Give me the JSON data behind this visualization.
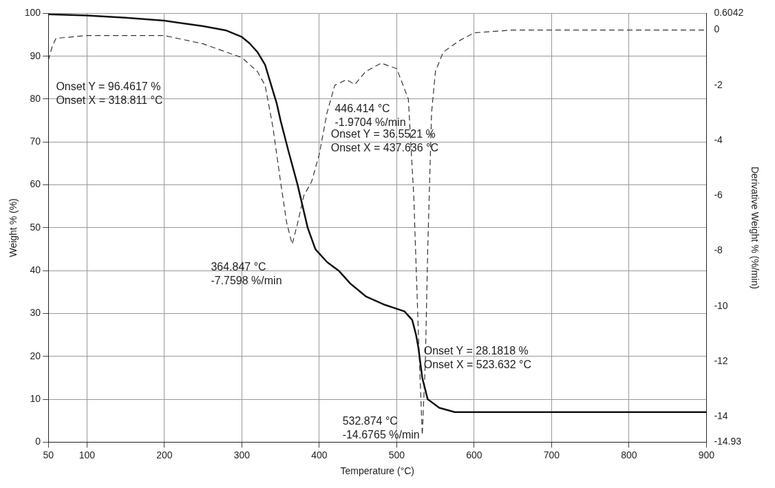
{
  "chart_data": {
    "type": "line",
    "xlabel": "Temperature (°C)",
    "ylabel": "Weight % (%)",
    "y2label": "Derivative Weight % (%/min)",
    "xlim": [
      50,
      900
    ],
    "xticks": [
      50,
      100,
      200,
      300,
      400,
      500,
      600,
      700,
      800,
      900
    ],
    "ylim": [
      0,
      100
    ],
    "yticks": [
      0,
      10,
      20,
      30,
      40,
      50,
      60,
      70,
      80,
      90,
      100
    ],
    "y2lim": [
      -14.93,
      0.6042
    ],
    "y2ticks": [
      -14.93,
      -14,
      -12,
      -10,
      -8,
      -6,
      -4,
      -2,
      0,
      0.6042
    ],
    "grid": true,
    "legend": false,
    "marker": "none",
    "series": [
      {
        "color": "#111111",
        "line_style": "solid",
        "x": [
          50,
          100,
          150,
          200,
          250,
          280,
          300,
          310,
          320,
          330,
          340,
          345,
          350,
          360,
          372,
          385,
          395,
          410,
          425,
          440,
          460,
          485,
          510,
          520,
          525,
          528,
          533,
          540,
          555,
          575,
          700,
          900
        ],
        "values": [
          99.8,
          99.5,
          99,
          98.3,
          97,
          96,
          94.5,
          93,
          91,
          88,
          82,
          79,
          75,
          68,
          60,
          50,
          45,
          42,
          40,
          37,
          34,
          32,
          30.5,
          28.5,
          25,
          22,
          15,
          10,
          8,
          7,
          7,
          7
        ]
      },
      {
        "color": "#333333",
        "line_style": "dashed",
        "axis": "y2",
        "x": [
          50,
          55,
          60,
          100,
          150,
          200,
          250,
          280,
          300,
          320,
          330,
          340,
          350,
          358,
          365,
          372,
          380,
          390,
          400,
          410,
          420,
          435,
          446,
          460,
          480,
          500,
          515,
          522,
          528,
          533,
          537,
          540,
          545,
          550,
          560,
          580,
          600,
          650,
          700,
          800,
          900
        ],
        "values": [
          -1.1,
          -0.6,
          -0.3,
          -0.2,
          -0.2,
          -0.2,
          -0.5,
          -0.8,
          -1,
          -1.5,
          -2,
          -3.5,
          -5.5,
          -7,
          -7.7598,
          -7,
          -6,
          -5.5,
          -4.5,
          -3,
          -2,
          -1.8,
          -1.9704,
          -1.5,
          -1.2,
          -1.4,
          -2.5,
          -6,
          -11,
          -14.6765,
          -12,
          -8,
          -3,
          -1.5,
          -0.8,
          -0.4,
          -0.1,
          0,
          0,
          0,
          0
        ]
      }
    ],
    "annotations": [
      "Onset Y = 96.4617 %\nOnset X = 318.811 °C",
      "446.414 °C\n-1.9704 %/min",
      "Onset Y = 36.5521 %\nOnset X = 437.636 °C",
      "364.847 °C\n-7.7598 %/min",
      "Onset Y = 28.1818 %\nOnset X = 523.632 °C",
      "532.874 °C\n-14.6765 %/min"
    ]
  }
}
